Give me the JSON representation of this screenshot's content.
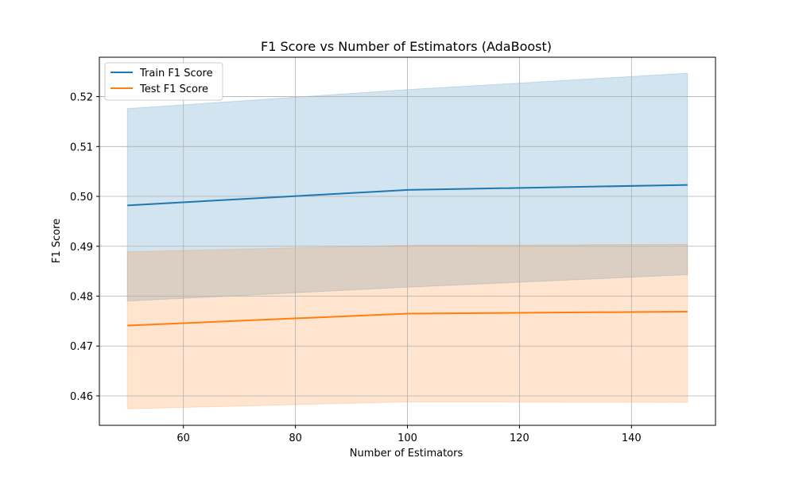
{
  "chart_data": {
    "type": "line",
    "title": "F1 Score vs Number of Estimators (AdaBoost)",
    "xlabel": "Number of Estimators",
    "ylabel": "F1 Score",
    "x": [
      50,
      100,
      150
    ],
    "xlim": [
      45,
      155
    ],
    "ylim": [
      0.4541,
      0.5279
    ],
    "xticks": [
      60,
      80,
      100,
      120,
      140
    ],
    "yticks": [
      0.46,
      0.47,
      0.48,
      0.49,
      0.5,
      0.51,
      0.52
    ],
    "grid": true,
    "legend_position": "top-left",
    "series": [
      {
        "name": "Train F1 Score",
        "color": "#1f77b4",
        "values": [
          0.4982,
          0.5013,
          0.5023
        ],
        "band_upper": [
          0.5176,
          0.5214,
          0.5247
        ],
        "band_lower": [
          0.479,
          0.4818,
          0.4843
        ]
      },
      {
        "name": "Test F1 Score",
        "color": "#ff7f0e",
        "values": [
          0.4741,
          0.4765,
          0.4769
        ],
        "band_upper": [
          0.4889,
          0.4902,
          0.4904
        ],
        "band_lower": [
          0.4574,
          0.4588,
          0.4587
        ]
      }
    ]
  }
}
